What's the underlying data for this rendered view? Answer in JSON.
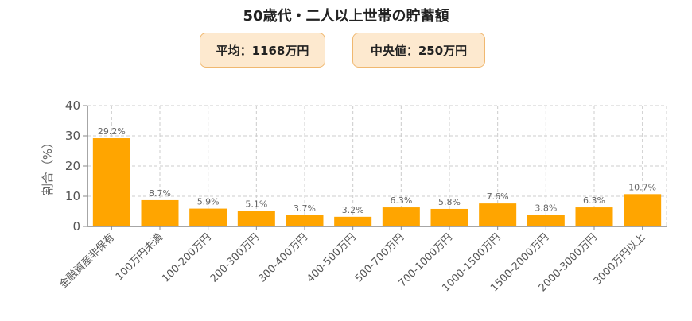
{
  "title": "50歳代・二人以上世帯の貯蓄額",
  "badges": {
    "mean": "平均：1168万円",
    "median": "中央値：250万円"
  },
  "colors": {
    "bar": "#FFA500",
    "badge_bg": "#FDE9CF",
    "badge_border": "#F0B870",
    "grid": "#cccccc",
    "axis": "#888888"
  },
  "chart_data": {
    "type": "bar",
    "title": "50歳代・二人以上世帯の貯蓄額",
    "xlabel": "",
    "ylabel": "割合（%）",
    "ylim": [
      0,
      40
    ],
    "yticks": [
      0,
      10,
      20,
      30,
      40
    ],
    "grid": true,
    "categories": [
      "金融資産非保有",
      "100万円未満",
      "100-200万円",
      "200-300万円",
      "300-400万円",
      "400-500万円",
      "500-700万円",
      "700-1000万円",
      "1000-1500万円",
      "1500-2000万円",
      "2000-3000万円",
      "3000万円以上"
    ],
    "values": [
      29.2,
      8.7,
      5.9,
      5.1,
      3.7,
      3.2,
      6.3,
      5.8,
      7.6,
      3.8,
      6.3,
      10.7
    ],
    "value_labels": [
      "29.2%",
      "8.7%",
      "5.9%",
      "5.1%",
      "3.7%",
      "3.2%",
      "6.3%",
      "5.8%",
      "7.6%",
      "3.8%",
      "6.3%",
      "10.7%"
    ],
    "annotations": [
      "平均：1168万円",
      "中央値：250万円"
    ]
  }
}
